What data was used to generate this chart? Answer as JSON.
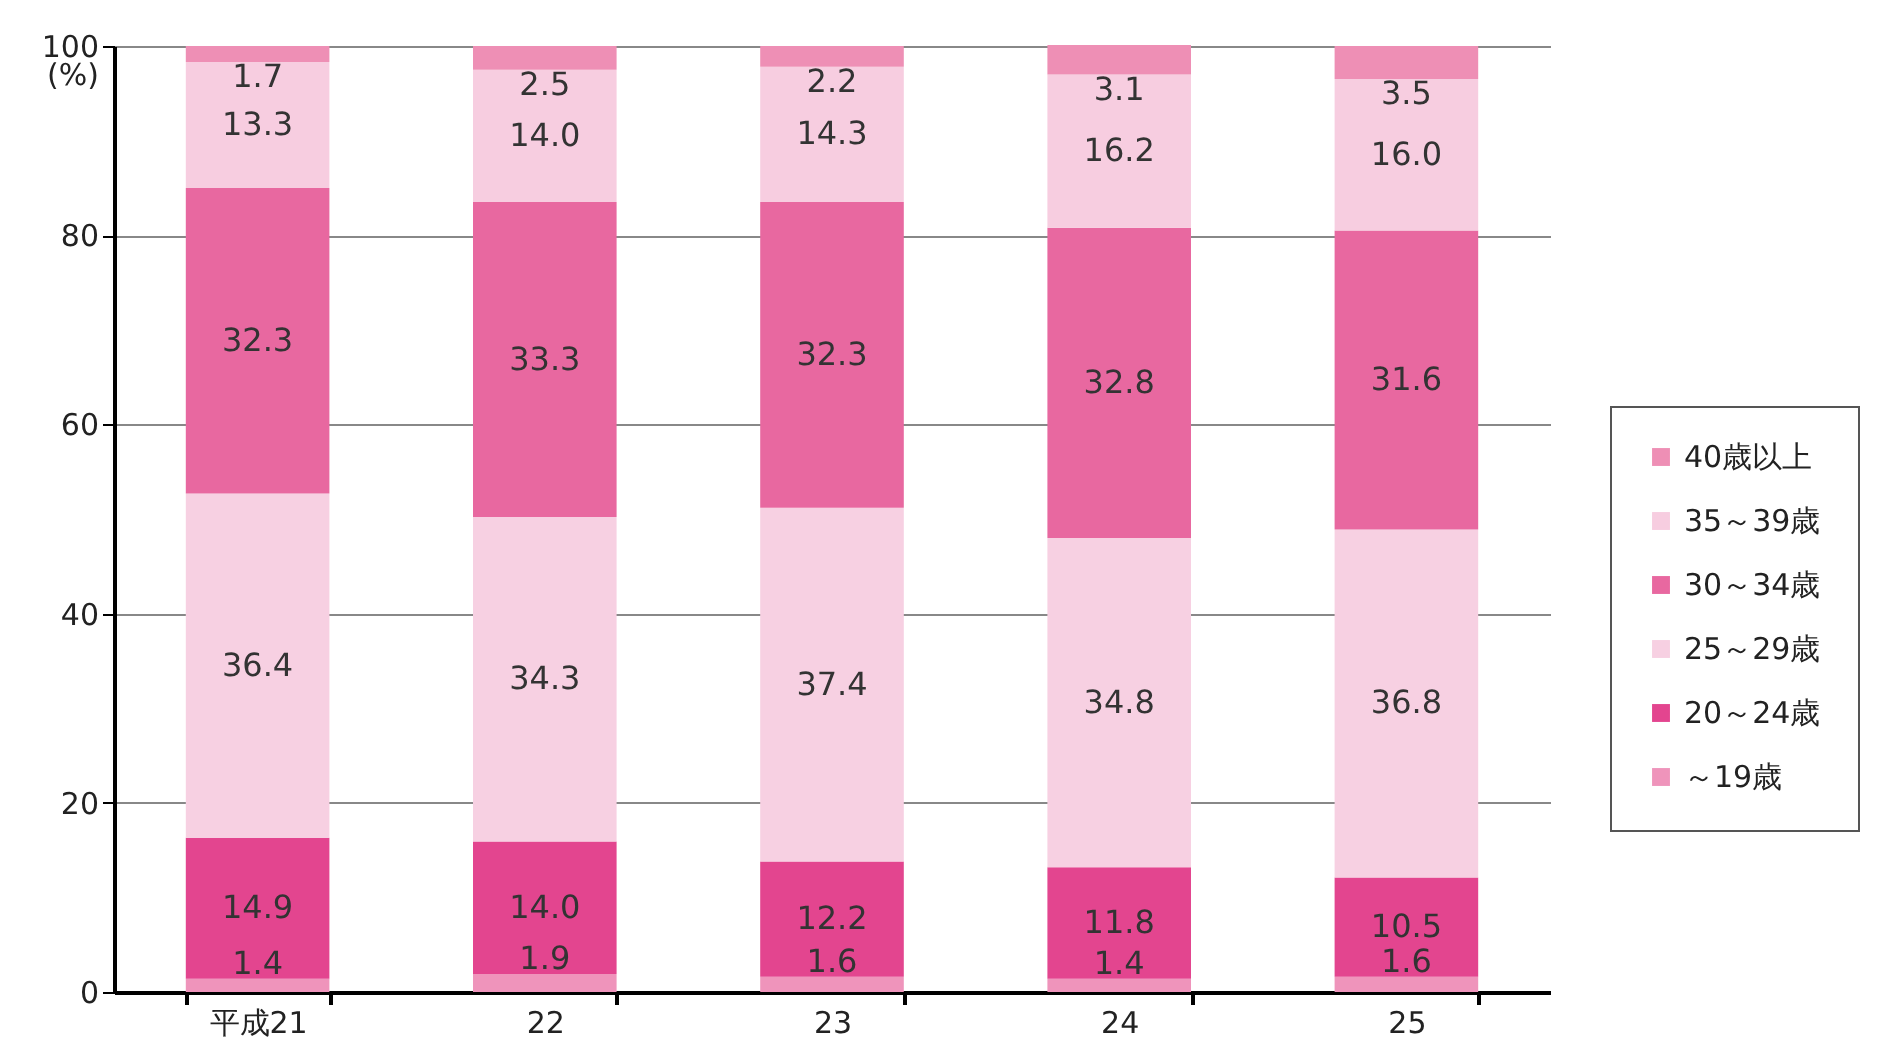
{
  "chart_data": {
    "type": "bar",
    "stacked": true,
    "ylabel": "(%)",
    "categories": [
      "平成21",
      "22",
      "23",
      "24",
      "25"
    ],
    "series": [
      {
        "name": "～19歳",
        "color": "#ef94bb",
        "values": [
          1.4,
          1.9,
          1.6,
          1.4,
          1.6
        ],
        "value_labels": [
          "1.4",
          "1.9",
          "1.6",
          "1.4",
          "1.6"
        ]
      },
      {
        "name": "20～24歳",
        "color": "#e3458f",
        "values": [
          14.9,
          14.0,
          12.2,
          11.8,
          10.5
        ],
        "value_labels": [
          "14.9",
          "14.0",
          "12.2",
          "11.8",
          "10.5"
        ]
      },
      {
        "name": "25～29歳",
        "color": "#f7d0e2",
        "values": [
          36.4,
          34.3,
          37.4,
          34.8,
          36.8
        ],
        "value_labels": [
          "36.4",
          "34.3",
          "37.4",
          "34.8",
          "36.8"
        ]
      },
      {
        "name": "30～34歳",
        "color": "#e868a0",
        "values": [
          32.3,
          33.3,
          32.3,
          32.8,
          31.6
        ],
        "value_labels": [
          "32.3",
          "33.3",
          "32.3",
          "32.8",
          "31.6"
        ]
      },
      {
        "name": "35～39歳",
        "color": "#f7cde0",
        "values": [
          13.3,
          14.0,
          14.3,
          16.2,
          16.0
        ],
        "value_labels": [
          "13.3",
          "14.0",
          "14.3",
          "16.2",
          "16.0"
        ]
      },
      {
        "name": "40歳以上",
        "color": "#ee8fb5",
        "values": [
          1.7,
          2.5,
          2.2,
          3.1,
          3.5
        ],
        "value_labels": [
          "1.7",
          "2.5",
          "2.2",
          "3.1",
          "3.5"
        ]
      }
    ],
    "ylim": [
      0,
      100
    ],
    "yticks": [
      0,
      20,
      40,
      60,
      80,
      100
    ],
    "grid": "y",
    "legend": "right"
  }
}
